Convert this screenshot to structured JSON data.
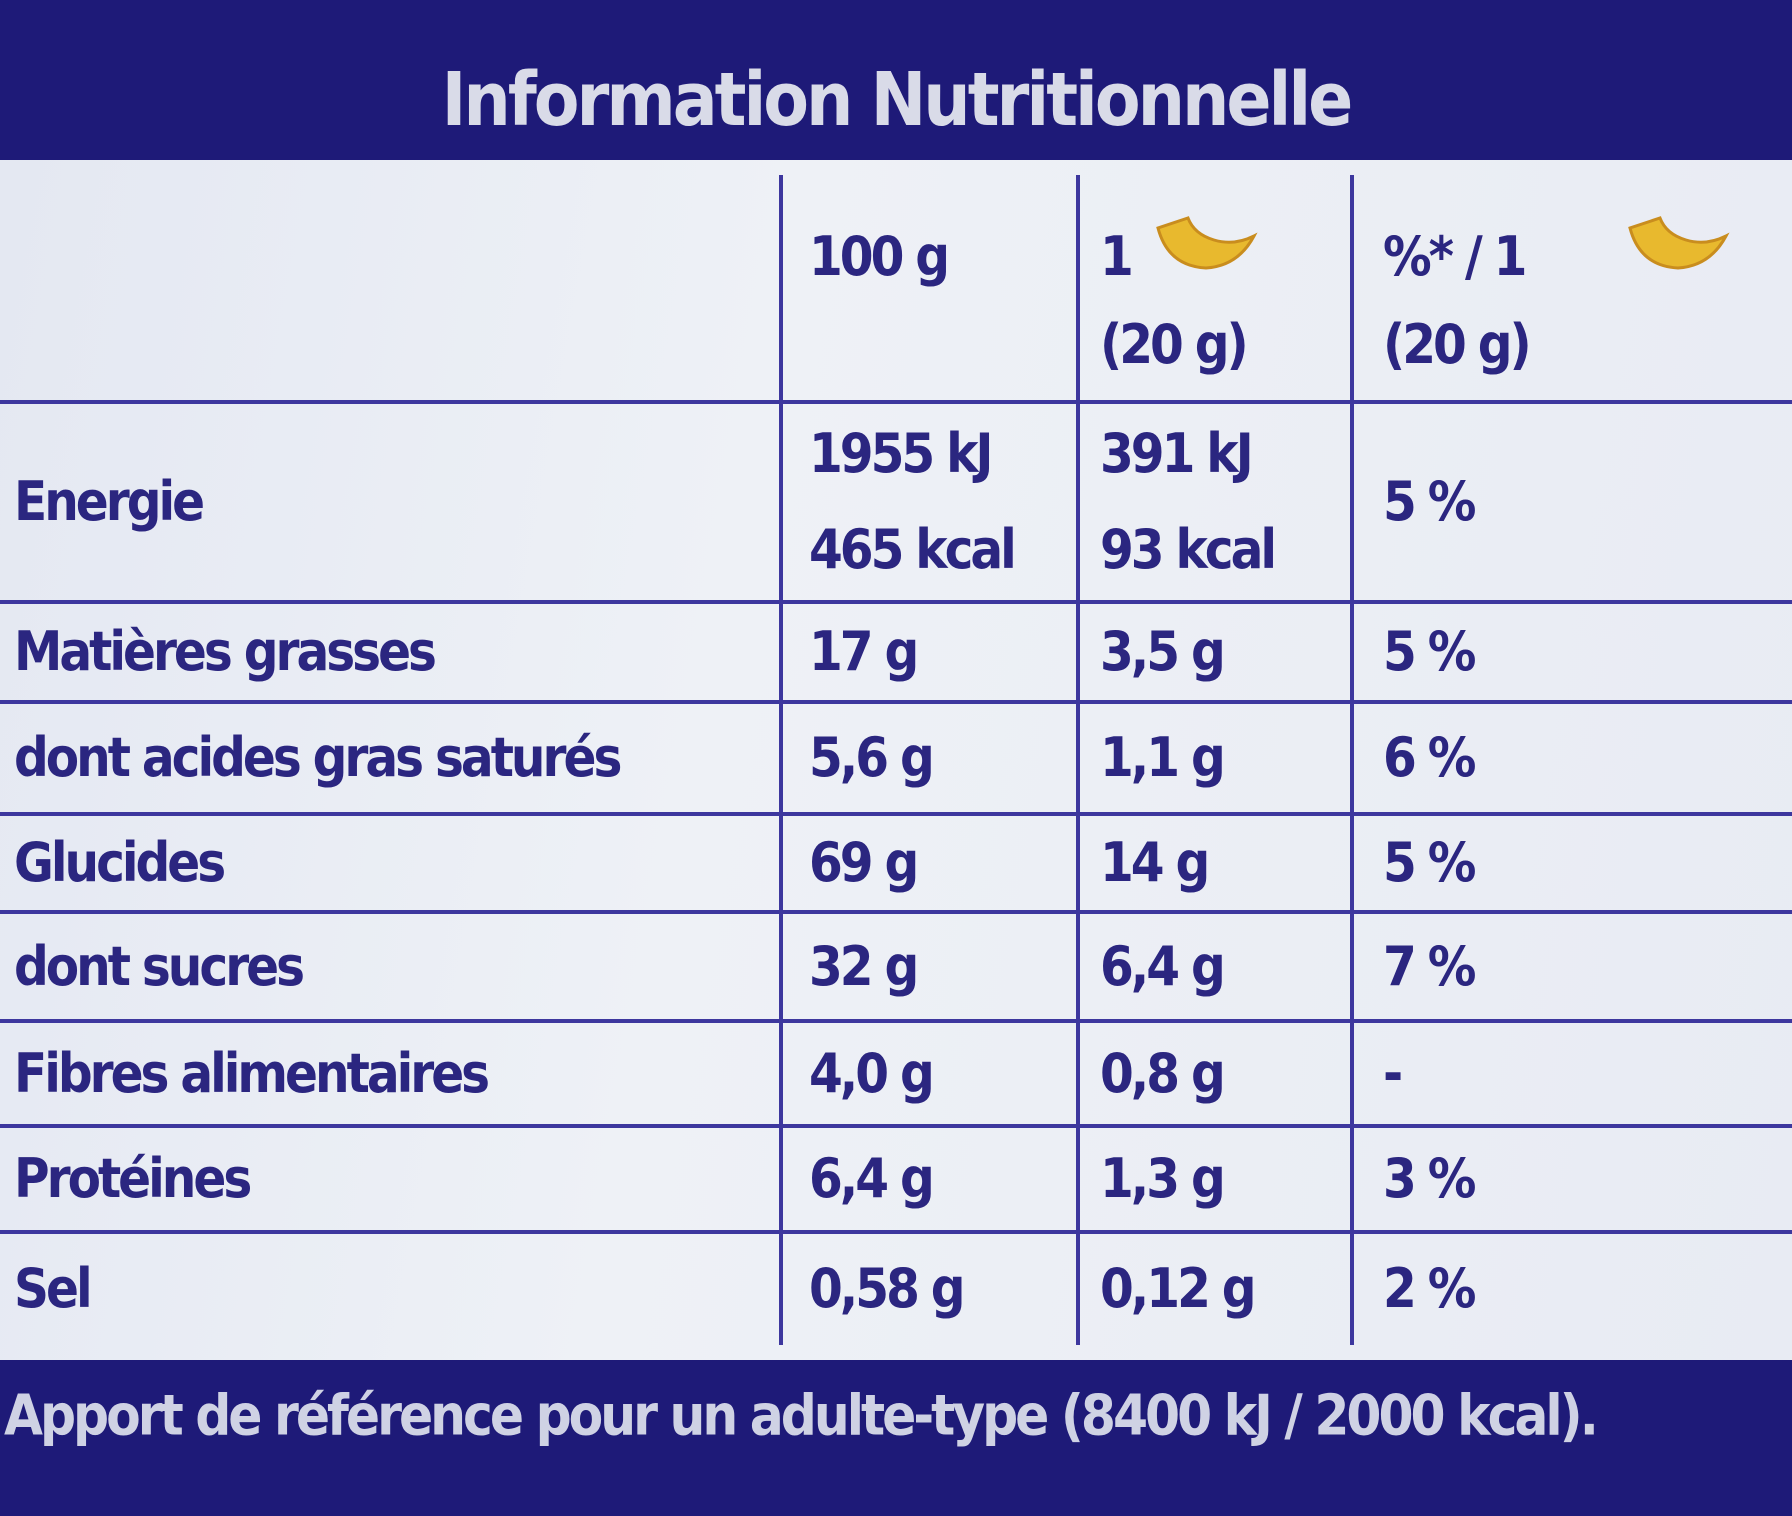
{
  "title": "Information Nutritionnelle",
  "table": {
    "header": [
      [
        "100 g"
      ],
      [
        "1",
        "(20 g)"
      ],
      [
        "%* / 1",
        "(20 g)"
      ]
    ],
    "rows": [
      {
        "label": "Energie",
        "cells": [
          [
            "1955 kJ",
            "465 kcal"
          ],
          [
            "391 kJ",
            "93 kcal"
          ],
          [
            "5 %"
          ]
        ]
      },
      {
        "label": "Matières grasses",
        "cells": [
          [
            "17 g"
          ],
          [
            "3,5 g"
          ],
          [
            "5 %"
          ]
        ]
      },
      {
        "label": "dont acides gras saturés",
        "cells": [
          [
            "5,6 g"
          ],
          [
            "1,1 g"
          ],
          [
            "6 %"
          ]
        ]
      },
      {
        "label": "Glucides",
        "cells": [
          [
            "69 g"
          ],
          [
            "14 g"
          ],
          [
            "5 %"
          ]
        ]
      },
      {
        "label": "dont sucres",
        "cells": [
          [
            "32 g"
          ],
          [
            "6,4 g"
          ],
          [
            "7 %"
          ]
        ]
      },
      {
        "label": "Fibres alimentaires",
        "cells": [
          [
            "4,0 g"
          ],
          [
            "0,8 g"
          ],
          [
            "-"
          ]
        ]
      },
      {
        "label": "Protéines",
        "cells": [
          [
            "6,4 g"
          ],
          [
            "1,3 g"
          ],
          [
            "3 %"
          ]
        ]
      },
      {
        "label": "Sel",
        "cells": [
          [
            "0,58 g"
          ],
          [
            "0,12 g"
          ],
          [
            "2 %"
          ]
        ]
      }
    ]
  },
  "footnote": "Apport de référence pour un adulte-type (8400 kJ / 2000 kcal)."
}
